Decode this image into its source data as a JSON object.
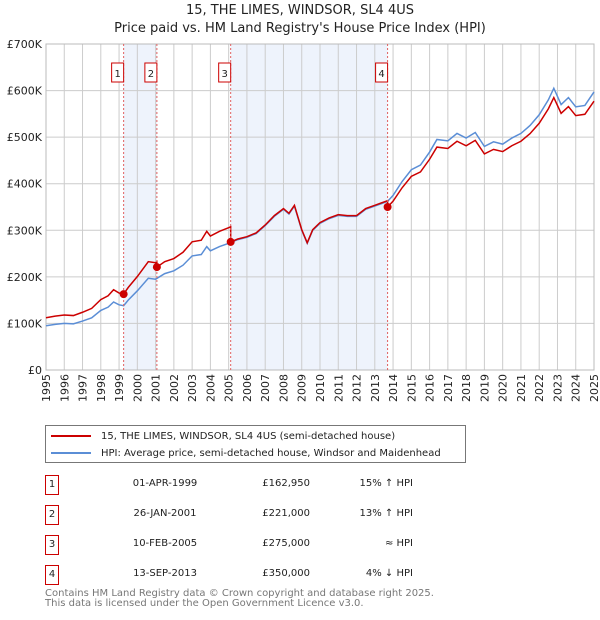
{
  "chart_data": {
    "type": "line",
    "title": "15, THE LIMES, WINDSOR, SL4 4US",
    "subtitle": "Price paid vs. HM Land Registry's House Price Index (HPI)",
    "xlim": [
      1995,
      2025
    ],
    "ylim": [
      0,
      700000
    ],
    "y_ticks": [
      {
        "v": 0,
        "label": "£0"
      },
      {
        "v": 100000,
        "label": "£100K"
      },
      {
        "v": 200000,
        "label": "£200K"
      },
      {
        "v": 300000,
        "label": "£300K"
      },
      {
        "v": 400000,
        "label": "£400K"
      },
      {
        "v": 500000,
        "label": "£500K"
      },
      {
        "v": 600000,
        "label": "£600K"
      },
      {
        "v": 700000,
        "label": "£700K"
      }
    ],
    "x_ticks": [
      "1995",
      "1996",
      "1997",
      "1998",
      "1999",
      "2000",
      "2001",
      "2002",
      "2003",
      "2004",
      "2005",
      "2006",
      "2007",
      "2008",
      "2009",
      "2010",
      "2011",
      "2012",
      "2013",
      "2014",
      "2015",
      "2016",
      "2017",
      "2018",
      "2019",
      "2020",
      "2021",
      "2022",
      "2023",
      "2024",
      "2025"
    ],
    "grid": true,
    "hpi_series": {
      "name": "HPI: Average price, semi-detached house, Windsor and Maidenhead",
      "color": "#5b8ed6",
      "x": [
        1995,
        1995.5,
        1996,
        1996.5,
        1997,
        1997.5,
        1998,
        1998.4,
        1998.7,
        1999,
        1999.25,
        1999.5,
        2000,
        2000.6,
        2001,
        2001.5,
        2002,
        2002.5,
        2003,
        2003.5,
        2003.8,
        2004,
        2004.5,
        2005,
        2005.5,
        2006,
        2006.5,
        2007,
        2007.5,
        2008,
        2008.3,
        2008.6,
        2009,
        2009.3,
        2009.6,
        2010,
        2010.5,
        2011,
        2011.5,
        2012,
        2012.5,
        2013,
        2013.7,
        2014,
        2014.5,
        2015,
        2015.5,
        2016,
        2016.4,
        2017,
        2017.5,
        2018,
        2018.5,
        2019,
        2019.5,
        2020,
        2020.5,
        2021,
        2021.5,
        2022,
        2022.5,
        2022.8,
        2023.2,
        2023.6,
        2024,
        2024.5,
        2025
      ],
      "y": [
        95000,
        98000,
        100000,
        99000,
        105000,
        112000,
        128000,
        135000,
        146000,
        140000,
        138000,
        150000,
        170000,
        197000,
        195000,
        207000,
        213000,
        225000,
        245000,
        248000,
        265000,
        256000,
        265000,
        272000,
        280000,
        285000,
        293000,
        310000,
        330000,
        345000,
        335000,
        352000,
        300000,
        272000,
        300000,
        315000,
        325000,
        332000,
        330000,
        330000,
        345000,
        352000,
        362000,
        375000,
        405000,
        430000,
        440000,
        468000,
        495000,
        492000,
        508000,
        498000,
        510000,
        480000,
        490000,
        485000,
        498000,
        508000,
        525000,
        548000,
        580000,
        605000,
        570000,
        585000,
        565000,
        568000,
        597000
      ]
    },
    "price_series": {
      "name": "15, THE LIMES, WINDSOR, SL4 4US (semi-detached house)",
      "color": "#cc0000"
    },
    "sales": [
      {
        "n": "1",
        "x": 1999.25,
        "date": "01-APR-1999",
        "price": 162950,
        "price_label": "£162,950",
        "hpi_label": "15% ↑ HPI"
      },
      {
        "n": "2",
        "x": 2001.07,
        "date": "26-JAN-2001",
        "price": 221000,
        "price_label": "£221,000",
        "hpi_label": "13% ↑ HPI"
      },
      {
        "n": "3",
        "x": 2005.11,
        "date": "10-FEB-2005",
        "price": 275000,
        "price_label": "£275,000",
        "hpi_label": "≈ HPI"
      },
      {
        "n": "4",
        "x": 2013.7,
        "date": "13-SEP-2013",
        "price": 350000,
        "price_label": "£350,000",
        "hpi_label": "4% ↓ HPI"
      }
    ]
  },
  "legend": {
    "price": "15, THE LIMES, WINDSOR, SL4 4US (semi-detached house)",
    "hpi": "HPI: Average price, semi-detached house, Windsor and Maidenhead"
  },
  "footer": {
    "line1": "Contains HM Land Registry data © Crown copyright and database right 2025.",
    "line2": "This data is licensed under the Open Government Licence v3.0."
  }
}
